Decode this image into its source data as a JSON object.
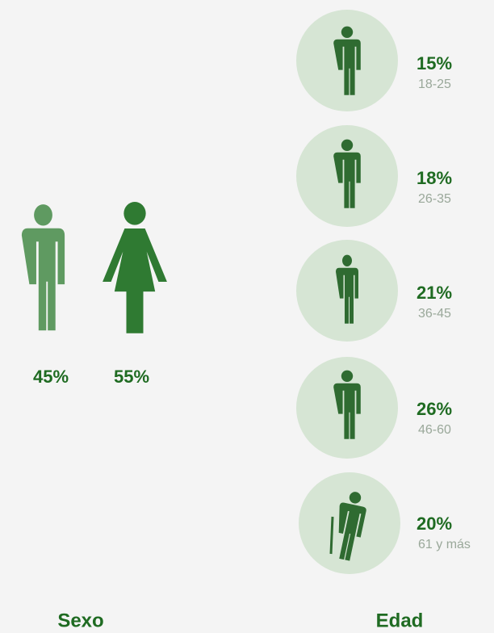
{
  "sexo": {
    "title": "Sexo",
    "items": [
      {
        "value": "45%"
      },
      {
        "value": "55%"
      }
    ]
  },
  "edad": {
    "title": "Edad",
    "items": [
      {
        "value": "15%",
        "range": "18-25"
      },
      {
        "value": "18%",
        "range": "26-35"
      },
      {
        "value": "21%",
        "range": "36-45"
      },
      {
        "value": "26%",
        "range": "46-60"
      },
      {
        "value": "20%",
        "range": "61 y más"
      }
    ]
  }
}
